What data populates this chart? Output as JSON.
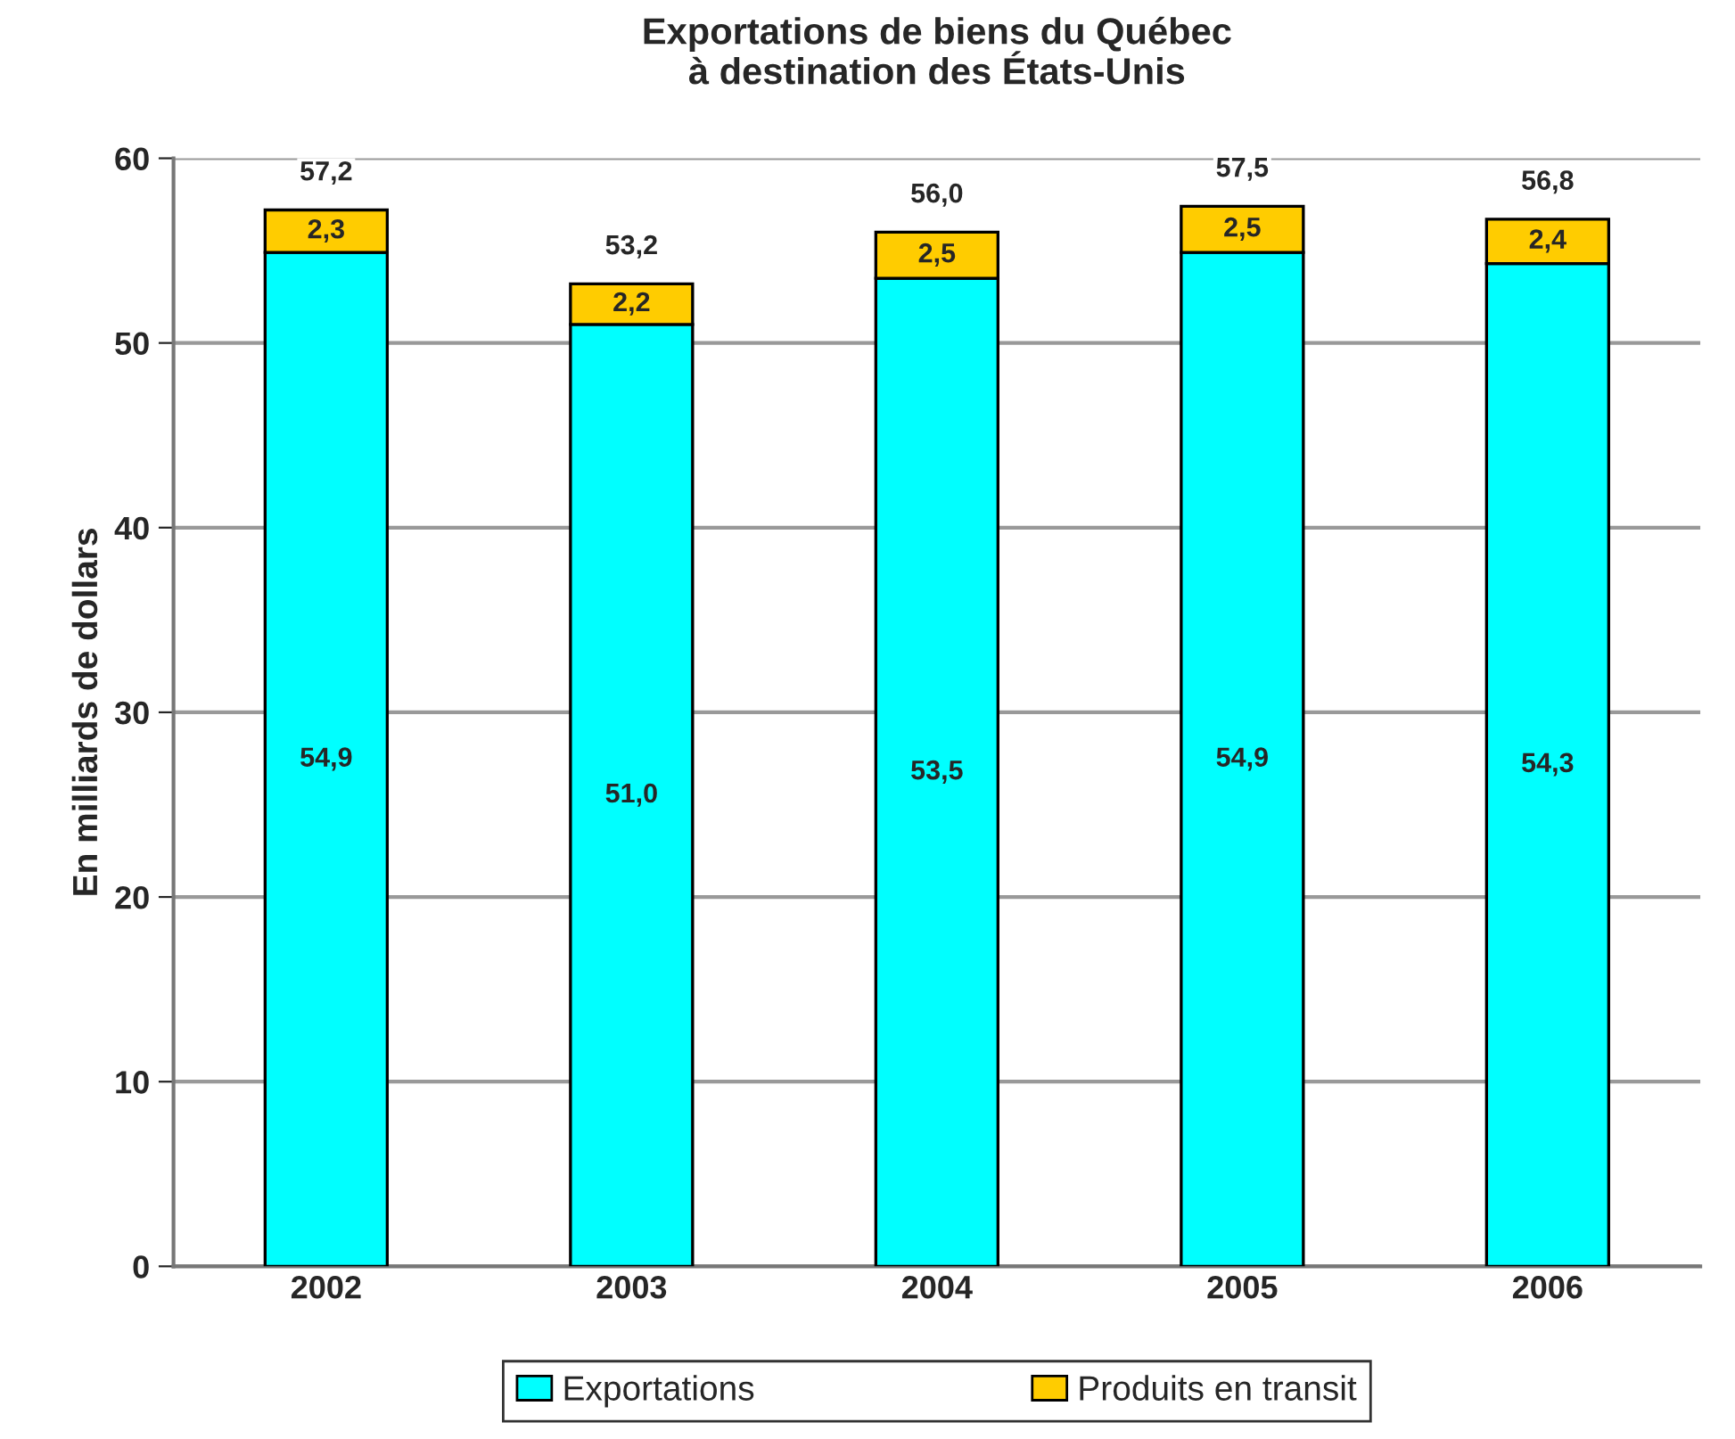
{
  "chart_data": {
    "type": "bar",
    "title": "Exportations de biens du Québec\nà destination des États-Unis",
    "ylabel": "En milliards de dollars",
    "categories": [
      "2002",
      "2003",
      "2004",
      "2005",
      "2006"
    ],
    "stacked": true,
    "series": [
      {
        "name": "Exportations",
        "color": "#00ffff",
        "values": [
          54.9,
          51.0,
          53.5,
          54.9,
          54.3
        ],
        "value_labels": [
          "54,9",
          "51,0",
          "53,5",
          "54,9",
          "54,3"
        ]
      },
      {
        "name": "Produits en transit",
        "color": "#ffcc00",
        "values": [
          2.3,
          2.2,
          2.5,
          2.5,
          2.4
        ],
        "value_labels": [
          "2,3",
          "2,2",
          "2,5",
          "2,5",
          "2,4"
        ]
      }
    ],
    "totals": [
      "57,2",
      "53,2",
      "56,0",
      "57,5",
      "56,8"
    ],
    "ylim": [
      0,
      60
    ],
    "yticks": [
      0,
      10,
      20,
      30,
      40,
      50,
      60
    ],
    "grid": "y",
    "legend": "bottom"
  }
}
